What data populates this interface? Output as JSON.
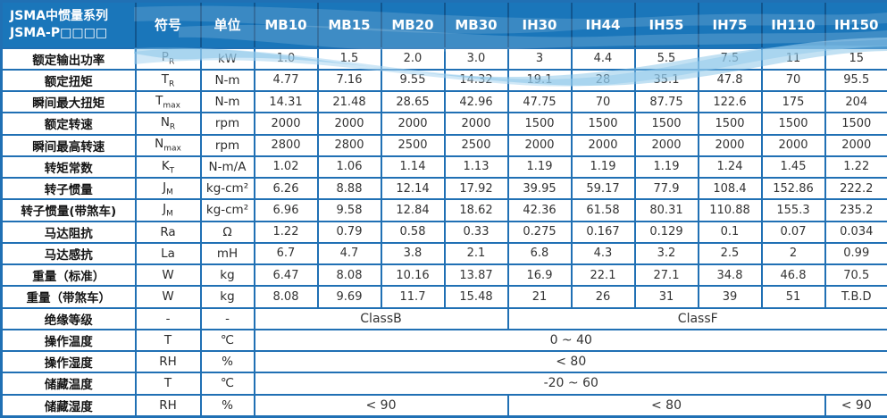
{
  "table": {
    "corner": {
      "line1": "JSMA中惯量系列",
      "line2": "JSMA-P□□□□"
    },
    "col_headers": {
      "symbol": "符号",
      "unit": "单位"
    },
    "models": [
      "MB10",
      "MB15",
      "MB20",
      "MB30",
      "IH30",
      "IH44",
      "IH55",
      "IH75",
      "IH110",
      "IH150"
    ],
    "rows": [
      {
        "label": "额定输出功率",
        "symbol": "P",
        "sub": "R",
        "unit": "kW",
        "values": [
          "1.0",
          "1.5",
          "2.0",
          "3.0",
          "3",
          "4.4",
          "5.5",
          "7.5",
          "11",
          "15"
        ]
      },
      {
        "label": "额定扭矩",
        "symbol": "T",
        "sub": "R",
        "unit": "N-m",
        "values": [
          "4.77",
          "7.16",
          "9.55",
          "14.32",
          "19.1",
          "28",
          "35.1",
          "47.8",
          "70",
          "95.5"
        ]
      },
      {
        "label": "瞬间最大扭矩",
        "symbol": "T",
        "sub": "max",
        "unit": "N-m",
        "values": [
          "14.31",
          "21.48",
          "28.65",
          "42.96",
          "47.75",
          "70",
          "87.75",
          "122.6",
          "175",
          "204"
        ]
      },
      {
        "label": "额定转速",
        "symbol": "N",
        "sub": "R",
        "unit": "rpm",
        "values": [
          "2000",
          "2000",
          "2000",
          "2000",
          "1500",
          "1500",
          "1500",
          "1500",
          "1500",
          "1500"
        ]
      },
      {
        "label": "瞬间最高转速",
        "symbol": "N",
        "sub": "max",
        "unit": "rpm",
        "values": [
          "2800",
          "2800",
          "2500",
          "2500",
          "2000",
          "2000",
          "2000",
          "2000",
          "2000",
          "2000"
        ]
      },
      {
        "label": "转矩常数",
        "symbol": "K",
        "sub": "T",
        "unit": "N-m/A",
        "values": [
          "1.02",
          "1.06",
          "1.14",
          "1.13",
          "1.19",
          "1.19",
          "1.19",
          "1.24",
          "1.45",
          "1.22"
        ]
      },
      {
        "label": "转子惯量",
        "symbol": "J",
        "sub": "M",
        "unit": "kg-cm²",
        "values": [
          "6.26",
          "8.88",
          "12.14",
          "17.92",
          "39.95",
          "59.17",
          "77.9",
          "108.4",
          "152.86",
          "222.2"
        ]
      },
      {
        "label": "转子惯量(带煞车)",
        "symbol": "J",
        "sub": "M",
        "unit": "kg-cm²",
        "values": [
          "6.96",
          "9.58",
          "12.84",
          "18.62",
          "42.36",
          "61.58",
          "80.31",
          "110.88",
          "155.3",
          "235.2"
        ]
      },
      {
        "label": "马达阻抗",
        "symbol": "Ra",
        "sub": "",
        "unit": "Ω",
        "values": [
          "1.22",
          "0.79",
          "0.58",
          "0.33",
          "0.275",
          "0.167",
          "0.129",
          "0.1",
          "0.07",
          "0.034"
        ]
      },
      {
        "label": "马达感抗",
        "symbol": "La",
        "sub": "",
        "unit": "mH",
        "values": [
          "6.7",
          "4.7",
          "3.8",
          "2.1",
          "6.8",
          "4.3",
          "3.2",
          "2.5",
          "2",
          "0.99"
        ]
      },
      {
        "label": "重量（标准）",
        "symbol": "W",
        "sub": "",
        "unit": "kg",
        "values": [
          "6.47",
          "8.08",
          "10.16",
          "13.87",
          "16.9",
          "22.1",
          "27.1",
          "34.8",
          "46.8",
          "70.5"
        ]
      },
      {
        "label": "重量（带煞车）",
        "symbol": "W",
        "sub": "",
        "unit": "kg",
        "values": [
          "8.08",
          "9.69",
          "11.7",
          "15.48",
          "21",
          "26",
          "31",
          "39",
          "51",
          "T.B.D"
        ]
      },
      {
        "label": "绝缘等级",
        "symbol": "-",
        "sub": "",
        "unit": "-",
        "spans": [
          {
            "text": "ClassB",
            "cols": 4
          },
          {
            "text": "ClassF",
            "cols": 6
          }
        ]
      },
      {
        "label": "操作温度",
        "symbol": "T",
        "sub": "",
        "unit": "℃",
        "spans": [
          {
            "text": "0 ~ 40",
            "cols": 10
          }
        ]
      },
      {
        "label": "操作湿度",
        "symbol": "RH",
        "sub": "",
        "unit": "%",
        "spans": [
          {
            "text": "< 80",
            "cols": 10
          }
        ]
      },
      {
        "label": "储藏温度",
        "symbol": "T",
        "sub": "",
        "unit": "℃",
        "spans": [
          {
            "text": "-20 ~ 60",
            "cols": 10
          }
        ]
      },
      {
        "label": "储藏湿度",
        "symbol": "RH",
        "sub": "",
        "unit": "%",
        "spans": [
          {
            "text": "< 90",
            "cols": 4
          },
          {
            "text": "< 80",
            "cols": 5
          },
          {
            "text": "< 90",
            "cols": 1
          }
        ]
      }
    ]
  },
  "colors": {
    "header_bg": "#1a76ba",
    "grid": "#2070b4",
    "header_divider": "#11568f",
    "wave_light": "#a9d5f0",
    "wave_mid": "#7fc0e6",
    "text": "#333333"
  }
}
